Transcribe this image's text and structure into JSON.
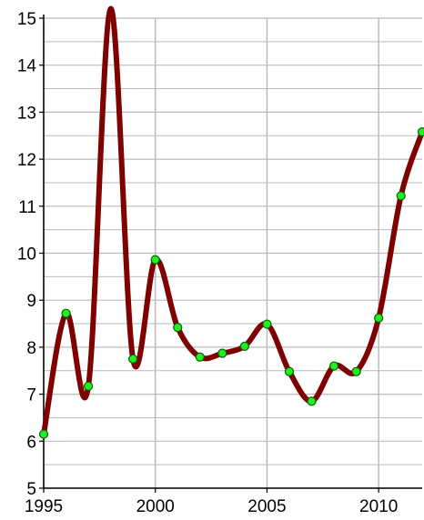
{
  "chart_data": {
    "type": "line",
    "title": "",
    "xlabel": "",
    "ylabel": "",
    "xlim": [
      1995,
      2011.95
    ],
    "ylim": [
      5,
      15
    ],
    "x_ticks": [
      1995,
      2000,
      2005,
      2010
    ],
    "x_tick_labels": [
      "1995",
      "2000",
      "2005",
      "2010"
    ],
    "y_ticks": [
      5,
      6,
      7,
      8,
      9,
      10,
      11,
      12,
      13,
      14,
      15
    ],
    "y_tick_labels": [
      "5",
      "6",
      "7",
      "8",
      "9",
      "10",
      "11",
      "12",
      "13",
      "14",
      "15"
    ],
    "grid": {
      "vertical": true,
      "horizontal": true,
      "minor_horizontal": true
    },
    "line_color": "#7f0000",
    "marker_fill": "#22ee22",
    "marker_stroke": "#006600",
    "grid_color": "#bbbbbb",
    "series": [
      {
        "points": [
          {
            "x": 1995.0,
            "y": 6.15
          },
          {
            "x": 1996.0,
            "y": 8.72
          },
          {
            "x": 1997.0,
            "y": 7.17
          },
          {
            "x": 1998.0,
            "y": 15.2
          },
          {
            "x": 1999.0,
            "y": 7.75
          },
          {
            "x": 2000.0,
            "y": 9.86
          },
          {
            "x": 2001.0,
            "y": 8.42
          },
          {
            "x": 2002.0,
            "y": 7.79
          },
          {
            "x": 2003.0,
            "y": 7.87
          },
          {
            "x": 2004.0,
            "y": 8.02
          },
          {
            "x": 2005.0,
            "y": 8.49
          },
          {
            "x": 2006.0,
            "y": 7.48
          },
          {
            "x": 2007.0,
            "y": 6.85
          },
          {
            "x": 2008.0,
            "y": 7.6
          },
          {
            "x": 2009.0,
            "y": 7.48
          },
          {
            "x": 2010.0,
            "y": 8.62
          },
          {
            "x": 2011.0,
            "y": 11.22
          },
          {
            "x": 2011.95,
            "y": 12.58
          }
        ],
        "markers": [
          {
            "x": 1995.0,
            "y": 6.15
          },
          {
            "x": 1996.0,
            "y": 8.72
          },
          {
            "x": 1997.0,
            "y": 7.17
          },
          {
            "x": 1999.0,
            "y": 7.75
          },
          {
            "x": 2000.0,
            "y": 9.86
          },
          {
            "x": 2001.0,
            "y": 8.42
          },
          {
            "x": 2002.0,
            "y": 7.79
          },
          {
            "x": 2003.0,
            "y": 7.87
          },
          {
            "x": 2004.0,
            "y": 8.02
          },
          {
            "x": 2005.0,
            "y": 8.49
          },
          {
            "x": 2006.0,
            "y": 7.48
          },
          {
            "x": 2007.0,
            "y": 6.85
          },
          {
            "x": 2008.0,
            "y": 7.6
          },
          {
            "x": 2009.0,
            "y": 7.48
          },
          {
            "x": 2010.0,
            "y": 8.62
          },
          {
            "x": 2011.0,
            "y": 11.22
          },
          {
            "x": 2011.95,
            "y": 12.58
          }
        ]
      }
    ]
  }
}
